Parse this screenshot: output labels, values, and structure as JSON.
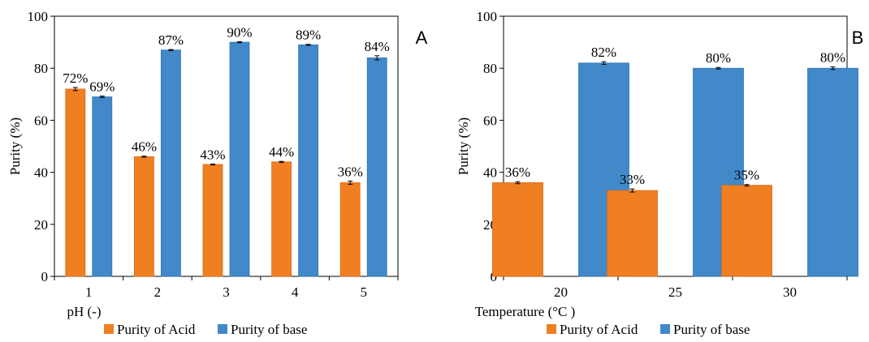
{
  "colors": {
    "acid": "#F07F22",
    "base": "#4189C9",
    "axis": "#000000"
  },
  "chart_data": [
    {
      "type": "bar",
      "panel_letter": "A",
      "xlabel": "pH (-)",
      "ylabel": "Purity (%)",
      "ylim": [
        0,
        100
      ],
      "yticks": [
        "0",
        "20",
        "40",
        "60",
        "80",
        "100"
      ],
      "categories": [
        "1",
        "2",
        "3",
        "4",
        "5"
      ],
      "series": [
        {
          "name": "Purity of Acid",
          "values": [
            72,
            46,
            43,
            44,
            36
          ],
          "labels": [
            "72%",
            "46%",
            "43%",
            "44%",
            "36%"
          ],
          "errors": [
            0.6,
            0.2,
            0.2,
            0.2,
            0.6
          ]
        },
        {
          "name": "Purity of base",
          "values": [
            69,
            87,
            90,
            89,
            84
          ],
          "labels": [
            "69%",
            "87%",
            "90%",
            "89%",
            "84%"
          ],
          "errors": [
            0.3,
            0.2,
            0.2,
            0.2,
            0.8
          ]
        }
      ],
      "legend_position": "bottom",
      "grid": false
    },
    {
      "type": "bar",
      "panel_letter": "B",
      "xlabel": "Temperature (°C )",
      "ylabel": "Purity (%)",
      "ylim": [
        0,
        100
      ],
      "yticks": [
        "0",
        "20",
        "40",
        "60",
        "80",
        "100"
      ],
      "categories": [
        "20",
        "25",
        "30"
      ],
      "series": [
        {
          "name": "Purity of Acid",
          "values": [
            36,
            33,
            35
          ],
          "labels": [
            "36%",
            "33%",
            "35%"
          ],
          "errors": [
            0.4,
            0.6,
            0.3
          ]
        },
        {
          "name": "Purity of base",
          "values": [
            82,
            80,
            80
          ],
          "labels": [
            "82%",
            "80%",
            "80%"
          ],
          "errors": [
            0.5,
            0.3,
            0.5
          ]
        }
      ],
      "legend_position": "bottom",
      "grid": false
    }
  ]
}
